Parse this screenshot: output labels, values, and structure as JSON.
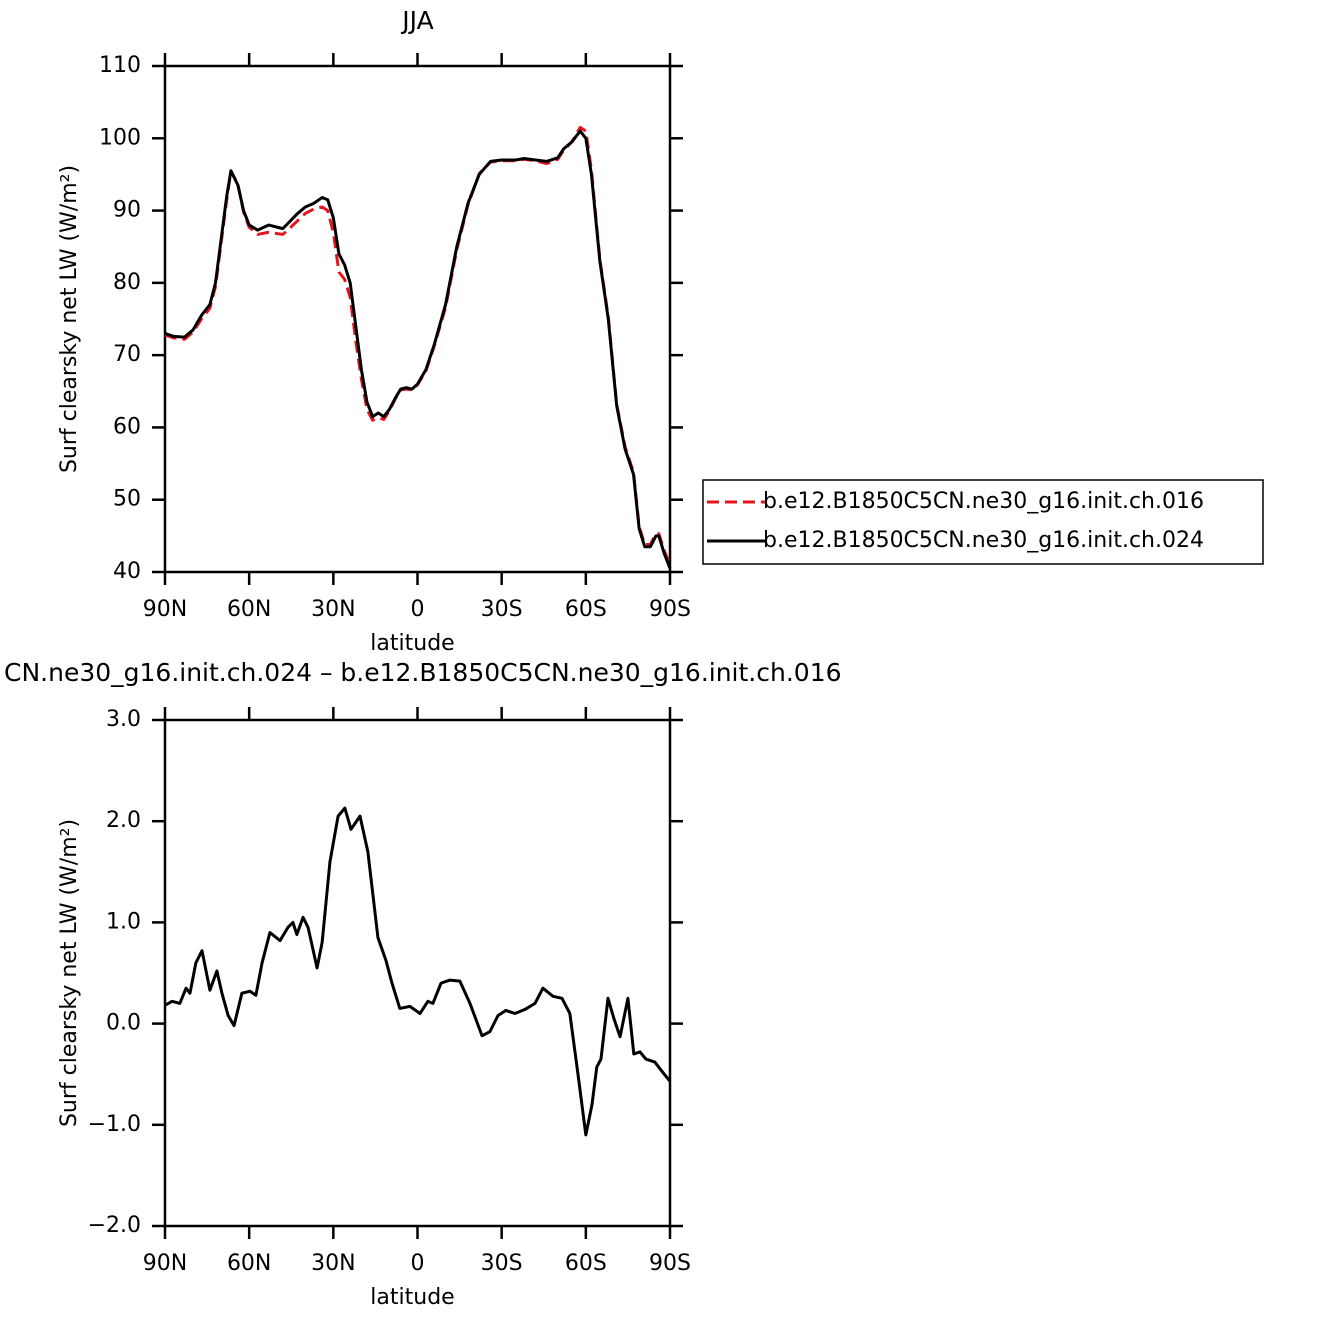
{
  "chart_data": [
    {
      "type": "line",
      "title": "JJA",
      "x_label": "latitude",
      "y_label": "Surf clearsky net LW (W/m²)",
      "x": [
        90,
        87,
        83,
        80,
        77,
        74,
        72,
        70,
        68,
        66.5,
        64,
        62,
        60,
        57,
        53,
        48,
        46,
        43,
        40,
        37,
        34,
        32,
        30,
        28,
        26,
        24,
        22,
        20,
        18,
        16,
        14,
        12,
        10,
        8,
        6,
        4,
        2,
        0,
        -3,
        -6,
        -10,
        -14,
        -18,
        -22,
        -26,
        -30,
        -35,
        -38,
        -42,
        -46,
        -50,
        -52,
        -55,
        -58,
        -60,
        -62,
        -65,
        -68,
        -71,
        -74,
        -77,
        -79,
        -81,
        -83,
        -85,
        -86,
        -88,
        -90
      ],
      "series": [
        {
          "name": "b.e12.B1850C5CN.ne30_g16.init.ch.016",
          "color": "#e8141c",
          "line_style": "dashed",
          "values": [
            72.8,
            72.4,
            72.2,
            73.2,
            75,
            76.5,
            79.5,
            85.5,
            91.5,
            95.5,
            93.6,
            89.8,
            87.7,
            86.7,
            87,
            86.7,
            87.4,
            88.5,
            89.6,
            90.2,
            90.5,
            90,
            87,
            81.5,
            80.5,
            78,
            72,
            66.7,
            62.5,
            61,
            61.3,
            61.1,
            62.3,
            63.9,
            65.2,
            65.3,
            65.2,
            65.9,
            67.8,
            71.3,
            76.6,
            84.6,
            90.8,
            95.1,
            96.7,
            96.9,
            96.9,
            97.1,
            96.9,
            96.5,
            97.1,
            98.3,
            99.5,
            101.5,
            101,
            95.6,
            83.3,
            75.3,
            63.2,
            57.3,
            53.8,
            46.3,
            43.8,
            43.8,
            45.3,
            45.3,
            42.9,
            41
          ]
        },
        {
          "name": "b.e12.B1850C5CN.ne30_g16.init.ch.024",
          "color": "#000000",
          "line_style": "solid",
          "values": [
            73,
            72.6,
            72.5,
            73.5,
            75.5,
            77,
            80,
            86,
            92,
            95.5,
            93.5,
            90,
            88,
            87.3,
            88,
            87.5,
            88.3,
            89.5,
            90.5,
            91,
            91.8,
            91.5,
            89,
            84,
            82.5,
            80,
            74,
            68,
            63.5,
            61.5,
            62,
            61.5,
            62.5,
            64,
            65.3,
            65.5,
            65.3,
            66,
            68,
            71.5,
            77,
            85,
            91,
            95,
            96.8,
            97,
            97,
            97.2,
            97,
            96.8,
            97.3,
            98.5,
            99.5,
            101,
            100,
            95,
            83,
            75,
            63,
            57,
            53.5,
            46,
            43.5,
            43.5,
            45,
            45,
            42.5,
            40.5
          ]
        }
      ],
      "xlim": [
        90,
        -90
      ],
      "xticks": [
        {
          "value": 90,
          "label": "90N"
        },
        {
          "value": 60,
          "label": "60N"
        },
        {
          "value": 30,
          "label": "30N"
        },
        0,
        {
          "value": -30,
          "label": "30S"
        },
        {
          "value": -60,
          "label": "60S"
        },
        {
          "value": -90,
          "label": "90S"
        }
      ],
      "ylim": [
        40,
        110
      ],
      "yticks": [
        40,
        50,
        60,
        70,
        80,
        90,
        100,
        110
      ],
      "legend": "outside-right"
    },
    {
      "type": "line",
      "title": "CN.ne30_g16.init.ch.024 – b.e12.B1850C5CN.ne30_g16.init.ch.016",
      "x_label": "latitude",
      "y_label": "Surf clearsky net LW (W/m²)",
      "x": [
        90,
        87.5,
        84.7,
        82.5,
        81.1,
        79,
        76.8,
        74,
        71.5,
        69.7,
        67.5,
        65.4,
        62.6,
        59.7,
        57.6,
        55.4,
        52.6,
        49,
        46.2,
        44.4,
        43,
        40.8,
        39,
        35.8,
        34,
        31.2,
        28.3,
        25.9,
        23.7,
        20.5,
        17.7,
        14.1,
        11.2,
        9.1,
        6.3,
        2.7,
        -0.9,
        -3.7,
        -5.5,
        -8.4,
        -11.6,
        -15.1,
        -18.7,
        -23,
        -25.8,
        -28.7,
        -31.5,
        -34.7,
        -38.3,
        -41.9,
        -44.7,
        -48.3,
        -51.5,
        -54.3,
        -57.2,
        -60,
        -62.2,
        -63.9,
        -65.4,
        -67.9,
        -70,
        -72.2,
        -75,
        -77.1,
        -79.3,
        -81.4,
        -84.6,
        -87.1,
        -90
      ],
      "values": [
        0.18,
        0.22,
        0.2,
        0.35,
        0.3,
        0.6,
        0.72,
        0.33,
        0.52,
        0.3,
        0.08,
        -0.02,
        0.3,
        0.32,
        0.28,
        0.6,
        0.9,
        0.82,
        0.95,
        1.0,
        0.88,
        1.05,
        0.95,
        0.55,
        0.8,
        1.6,
        2.05,
        2.13,
        1.92,
        2.05,
        1.7,
        0.85,
        0.62,
        0.4,
        0.15,
        0.17,
        0.1,
        0.22,
        0.2,
        0.4,
        0.43,
        0.42,
        0.2,
        -0.12,
        -0.08,
        0.08,
        0.13,
        0.1,
        0.14,
        0.2,
        0.35,
        0.27,
        0.25,
        0.1,
        -0.5,
        -1.1,
        -0.8,
        -0.43,
        -0.35,
        0.25,
        0.05,
        -0.13,
        0.25,
        -0.3,
        -0.28,
        -0.35,
        -0.38,
        -0.47,
        -0.57
      ],
      "color": "#000000",
      "xlim": [
        90,
        -90
      ],
      "xticks": [
        {
          "value": 90,
          "label": "90N"
        },
        {
          "value": 60,
          "label": "60N"
        },
        {
          "value": 30,
          "label": "30N"
        },
        0,
        {
          "value": -30,
          "label": "30S"
        },
        {
          "value": -60,
          "label": "60S"
        },
        {
          "value": -90,
          "label": "90S"
        }
      ],
      "ylim": [
        -2,
        3
      ],
      "yticks": [
        {
          "value": -2,
          "label": "−2.0"
        },
        {
          "value": -1,
          "label": "−1.0"
        },
        {
          "value": 0,
          "label": "0.0"
        },
        {
          "value": 1,
          "label": "1.0"
        },
        {
          "value": 2,
          "label": "2.0"
        },
        {
          "value": 3,
          "label": "3.0"
        }
      ]
    }
  ]
}
